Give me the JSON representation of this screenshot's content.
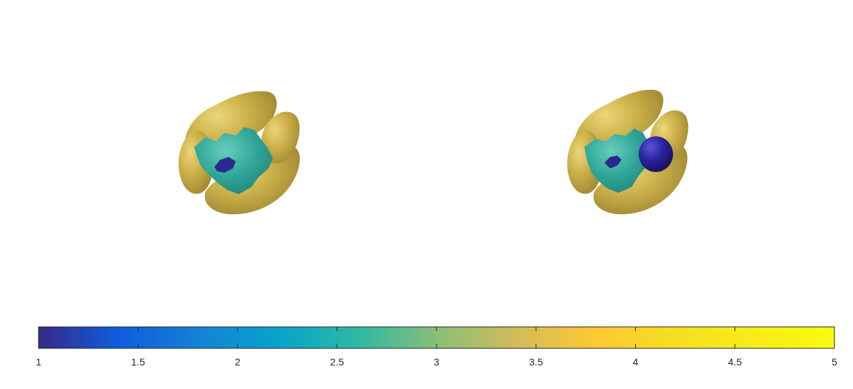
{
  "chart_data": {
    "type": "3d-surface-with-colorbar",
    "panels": [
      {
        "name": "left-volume",
        "structures": [
          {
            "kind": "outer-lobes",
            "value": 4
          },
          {
            "kind": "inner-region",
            "value": 3
          },
          {
            "kind": "core",
            "value": 1
          }
        ]
      },
      {
        "name": "right-volume",
        "structures": [
          {
            "kind": "outer-lobes",
            "value": 4
          },
          {
            "kind": "inner-region",
            "value": 3
          },
          {
            "kind": "core",
            "value": 1
          },
          {
            "kind": "sphere",
            "value": 1
          }
        ]
      }
    ],
    "colorbar": {
      "orientation": "horizontal",
      "location": "bottom",
      "colormap": "parula",
      "limits": [
        1,
        5
      ],
      "ticks": [
        1,
        1.5,
        2,
        2.5,
        3,
        3.5,
        4,
        4.5,
        5
      ],
      "tick_labels": [
        "1",
        "1.5",
        "2",
        "2.5",
        "3",
        "3.5",
        "4",
        "4.5",
        "5"
      ]
    },
    "colors": {
      "outer": "#cdb14a",
      "inner": "#2fa597",
      "core": "#2a2a8c",
      "sphere": "#231d8a"
    }
  }
}
